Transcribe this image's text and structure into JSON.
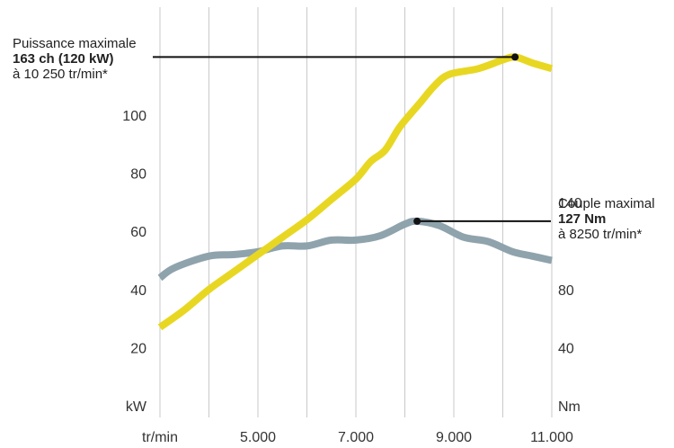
{
  "chart_data": {
    "type": "line",
    "x_tick_labels": [
      "tr/min",
      "5.000",
      "7.000",
      "9.000",
      "11.000"
    ],
    "x_ticks": [
      3000,
      5000,
      7000,
      9000,
      11000
    ],
    "xlim": [
      3000,
      11000
    ],
    "left_axis": {
      "unit": "kW",
      "ticks": [
        20,
        40,
        60,
        80,
        100
      ],
      "ylim": [
        0,
        130
      ]
    },
    "right_axis": {
      "unit": "Nm",
      "ticks": [
        40,
        80,
        140
      ],
      "ylim": [
        0,
        260
      ]
    },
    "grid": {
      "vertical": true,
      "horizontal": false
    },
    "series": [
      {
        "axis": "left",
        "color": "#e8d722",
        "points": [
          [
            3000,
            27
          ],
          [
            3500,
            33
          ],
          [
            4000,
            40
          ],
          [
            4500,
            46
          ],
          [
            5000,
            52
          ],
          [
            5500,
            58
          ],
          [
            6000,
            64
          ],
          [
            6500,
            71
          ],
          [
            7000,
            78
          ],
          [
            7300,
            84
          ],
          [
            7600,
            88
          ],
          [
            7900,
            96
          ],
          [
            8300,
            104
          ],
          [
            8600,
            110
          ],
          [
            8900,
            114
          ],
          [
            9500,
            116
          ],
          [
            10000,
            119
          ],
          [
            10250,
            120
          ],
          [
            10600,
            118
          ],
          [
            11000,
            116
          ]
        ]
      },
      {
        "axis": "right",
        "color": "#8fa3ad",
        "points": [
          [
            3000,
            88
          ],
          [
            3300,
            95
          ],
          [
            4000,
            103
          ],
          [
            4500,
            104
          ],
          [
            5000,
            106
          ],
          [
            5500,
            110
          ],
          [
            6000,
            110
          ],
          [
            6500,
            114
          ],
          [
            7000,
            114
          ],
          [
            7500,
            117
          ],
          [
            8000,
            125
          ],
          [
            8250,
            127
          ],
          [
            8700,
            124
          ],
          [
            9200,
            116
          ],
          [
            9700,
            113
          ],
          [
            10200,
            106
          ],
          [
            10600,
            103
          ],
          [
            11000,
            100
          ]
        ]
      }
    ],
    "annotations": [
      {
        "series_index": 0,
        "x": 10250,
        "y": 120,
        "lines": [
          "Puissance maximale",
          "163 ch (120 kW)",
          "à 10 250 tr/min*"
        ]
      },
      {
        "series_index": 1,
        "x": 8250,
        "y": 127,
        "lines": [
          "Couple maximal",
          "127 Nm",
          "à 8250 tr/min*"
        ]
      }
    ]
  }
}
